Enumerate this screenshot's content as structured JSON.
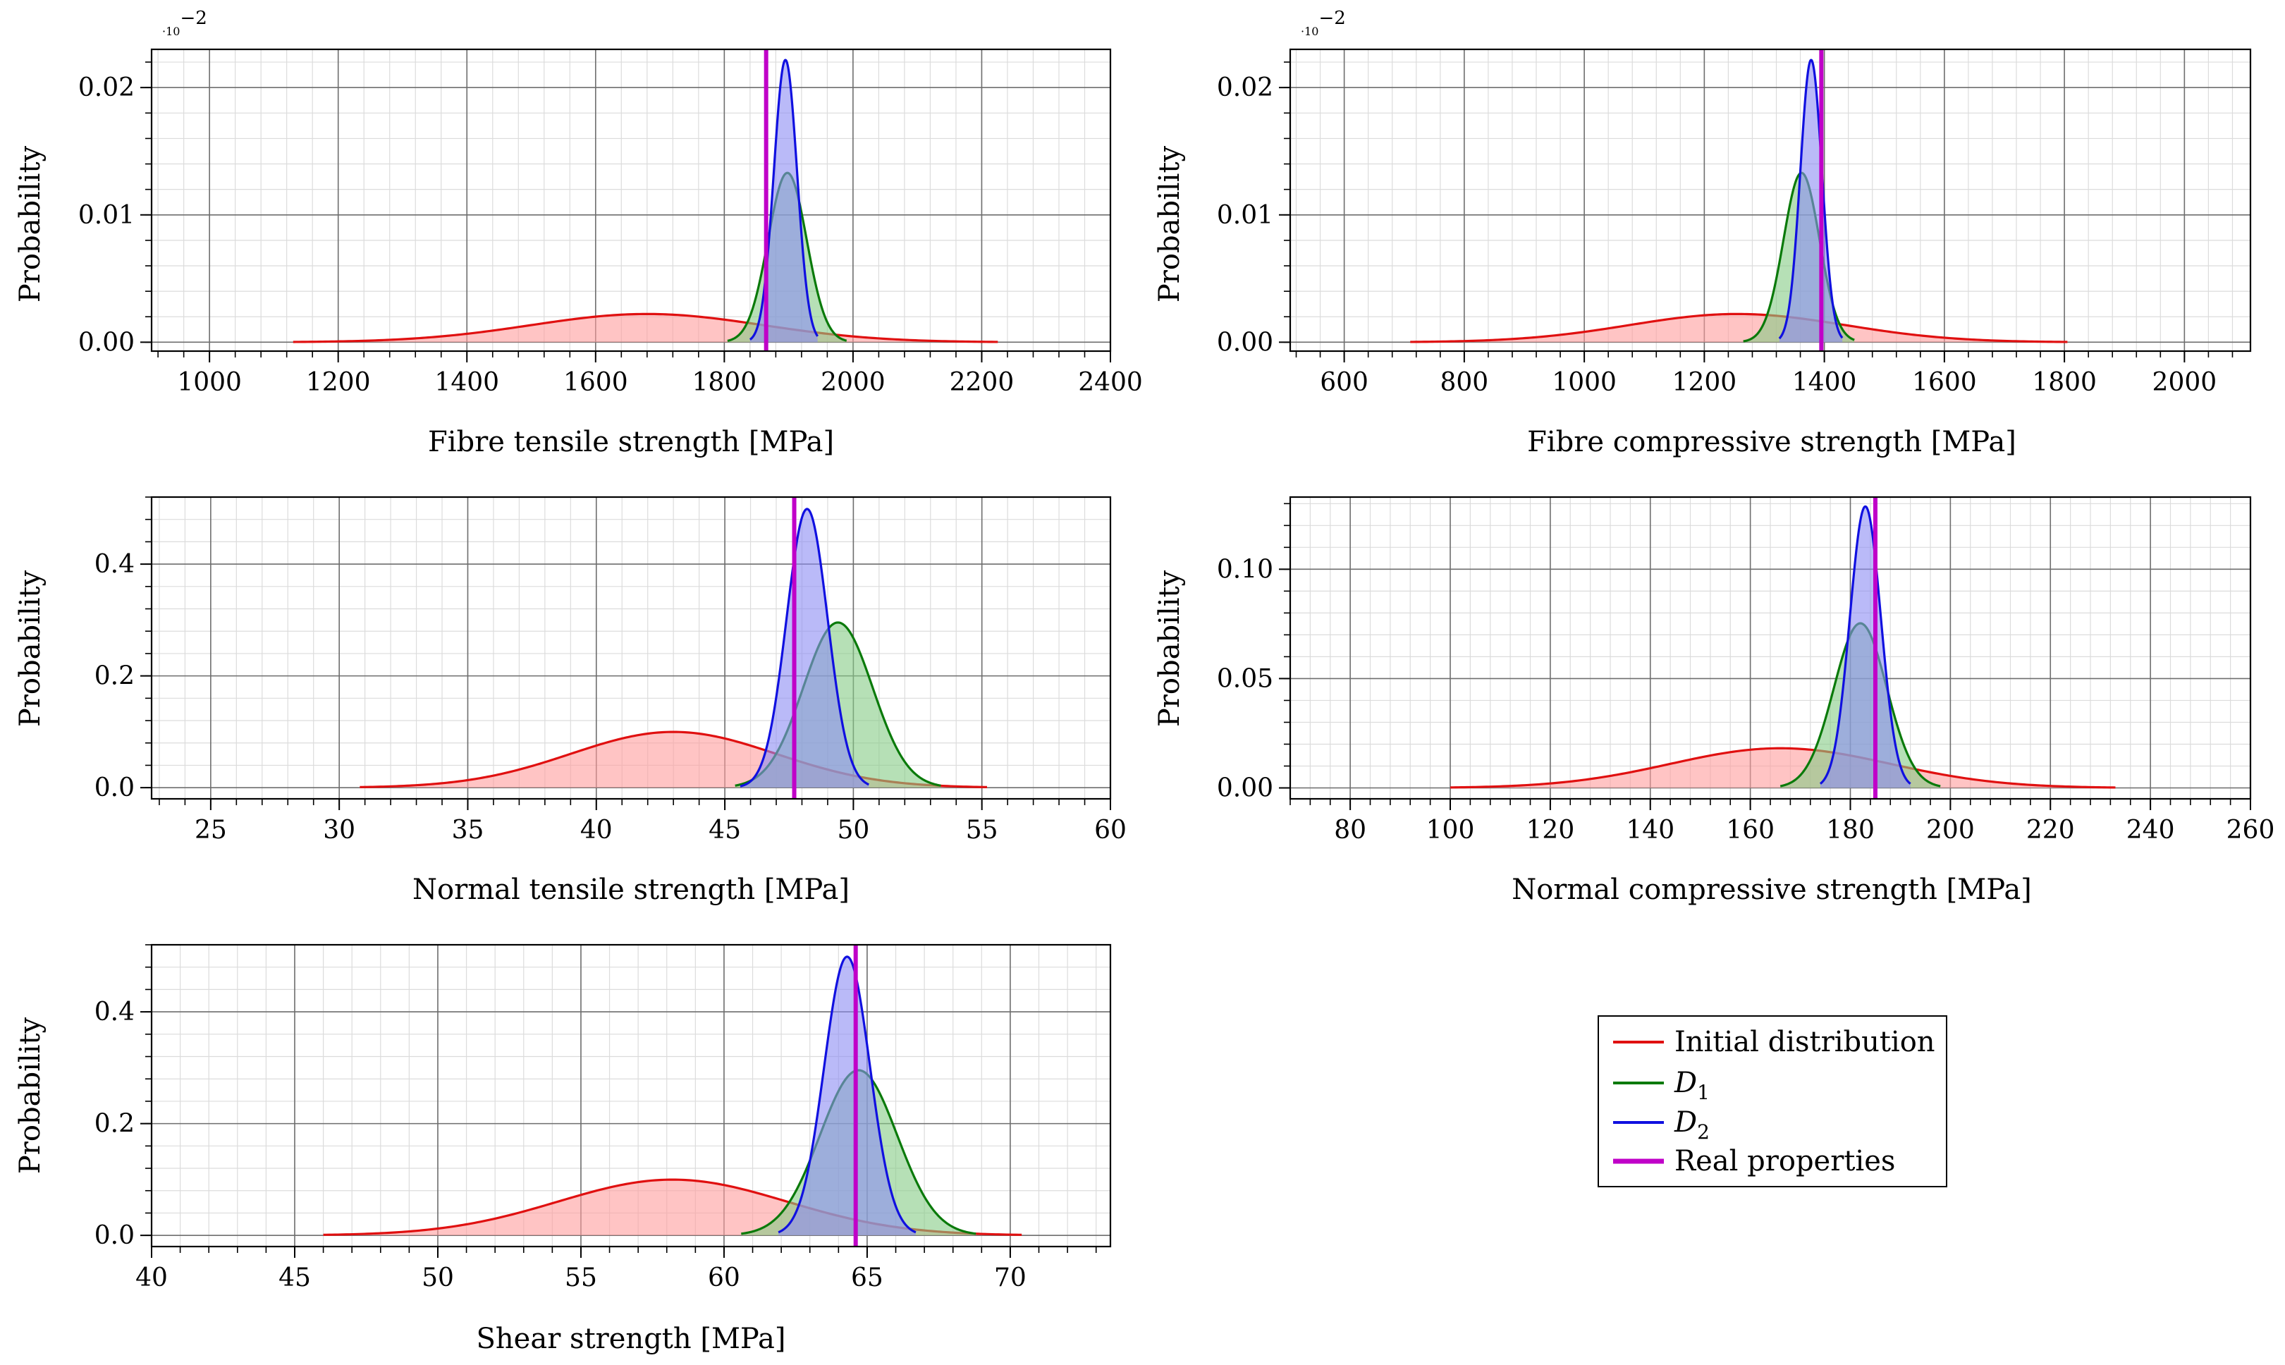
{
  "colors": {
    "initial": "#e01010",
    "initial_fill": "#ff9c9c",
    "d1": "#0a7a0a",
    "d1_fill": "#86cc86",
    "d2": "#1010e0",
    "d2_fill": "#8c8cf4",
    "real": "#c000c8"
  },
  "legend": {
    "items": [
      {
        "label": "Initial distribution",
        "color_key": "initial"
      },
      {
        "label": "D",
        "subscript": "1",
        "color_key": "d1"
      },
      {
        "label": "D",
        "subscript": "2",
        "color_key": "d2"
      },
      {
        "label": "Real properties",
        "color_key": "real"
      }
    ]
  },
  "chart_data": [
    {
      "type": "area",
      "id": "fibre-tensile",
      "xlabel": "Fibre tensile strength [MPa]",
      "ylabel": "Probability",
      "multiplier": {
        "base": "·10",
        "exp": "−2"
      },
      "xlim": [
        910,
        2400
      ],
      "ylim": [
        -0.0007,
        0.023
      ],
      "xticks": [
        1000,
        1200,
        1400,
        1600,
        1800,
        2000,
        2200,
        2400
      ],
      "xtick_labels": [
        "1000",
        "1200",
        "1400",
        "1600",
        "1800",
        "2000",
        "2200",
        "2400"
      ],
      "yticks": [
        0,
        0.01,
        0.02
      ],
      "ytick_labels": [
        "0.00",
        "0.01",
        "0.02"
      ],
      "grid_major": {
        "x": 200,
        "y": 0.01
      },
      "grid_minor": {
        "x": 40,
        "y": 0.002
      },
      "series": [
        {
          "name": "Initial distribution",
          "color_key": "initial",
          "mean": 1680,
          "sd": 180,
          "range": [
            1130,
            2225
          ]
        },
        {
          "name": "D1",
          "color_key": "d1",
          "mean": 1898,
          "sd": 30,
          "range": [
            1805,
            1990
          ]
        },
        {
          "name": "D2",
          "color_key": "d2",
          "mean": 1895,
          "sd": 18,
          "range": [
            1840,
            1945
          ]
        }
      ],
      "real_value": 1865
    },
    {
      "type": "area",
      "id": "fibre-compressive",
      "xlabel": "Fibre compressive strength [MPa]",
      "ylabel": "Probability",
      "multiplier": {
        "base": "·10",
        "exp": "−2"
      },
      "xlim": [
        510,
        2110
      ],
      "ylim": [
        -0.0007,
        0.023
      ],
      "xticks": [
        600,
        800,
        1000,
        1200,
        1400,
        1600,
        1800,
        2000
      ],
      "xtick_labels": [
        "600",
        "800",
        "1000",
        "1200",
        "1400",
        "1600",
        "1800",
        "2000"
      ],
      "yticks": [
        0,
        0.01,
        0.02
      ],
      "ytick_labels": [
        "0.00",
        "0.01",
        "0.02"
      ],
      "grid_major": {
        "x": 200,
        "y": 0.01
      },
      "grid_minor": {
        "x": 40,
        "y": 0.002
      },
      "series": [
        {
          "name": "Initial distribution",
          "color_key": "initial",
          "mean": 1255,
          "sd": 180,
          "range": [
            710,
            1805
          ]
        },
        {
          "name": "D1",
          "color_key": "d1",
          "mean": 1362,
          "sd": 30,
          "range": [
            1265,
            1450
          ]
        },
        {
          "name": "D2",
          "color_key": "d2",
          "mean": 1378,
          "sd": 18,
          "range": [
            1325,
            1430
          ]
        }
      ],
      "real_value": 1395
    },
    {
      "type": "area",
      "id": "normal-tensile",
      "xlabel": "Normal tensile strength [MPa]",
      "ylabel": "Probability",
      "multiplier": null,
      "xlim": [
        22.7,
        60
      ],
      "ylim": [
        -0.02,
        0.52
      ],
      "xticks": [
        25,
        30,
        35,
        40,
        45,
        50,
        55,
        60
      ],
      "xtick_labels": [
        "25",
        "30",
        "35",
        "40",
        "45",
        "50",
        "55",
        "60"
      ],
      "yticks": [
        0,
        0.2,
        0.4
      ],
      "ytick_labels": [
        "0.0",
        "0.2",
        "0.4"
      ],
      "grid_major": {
        "x": 5,
        "y": 0.2
      },
      "grid_minor": {
        "x": 1,
        "y": 0.04
      },
      "series": [
        {
          "name": "Initial distribution",
          "color_key": "initial",
          "mean": 43,
          "sd": 4,
          "range": [
            30.8,
            55.2
          ]
        },
        {
          "name": "D1",
          "color_key": "d1",
          "mean": 49.4,
          "sd": 1.35,
          "range": [
            45.4,
            53.4
          ]
        },
        {
          "name": "D2",
          "color_key": "d2",
          "mean": 48.2,
          "sd": 0.8,
          "range": [
            45.6,
            50.6
          ]
        }
      ],
      "real_value": 47.7
    },
    {
      "type": "area",
      "id": "normal-compressive",
      "xlabel": "Normal compressive strength [MPa]",
      "ylabel": "Probability",
      "multiplier": null,
      "xlim": [
        68,
        260
      ],
      "ylim": [
        -0.005,
        0.133
      ],
      "xticks": [
        80,
        100,
        120,
        140,
        160,
        180,
        200,
        220,
        240,
        260
      ],
      "xtick_labels": [
        "80",
        "100",
        "120",
        "140",
        "160",
        "180",
        "200",
        "220",
        "240",
        "260"
      ],
      "yticks": [
        0,
        0.05,
        0.1
      ],
      "ytick_labels": [
        "0.00",
        "0.05",
        "0.10"
      ],
      "grid_major": {
        "x": 20,
        "y": 0.05
      },
      "grid_minor": {
        "x": 4,
        "y": 0.01
      },
      "series": [
        {
          "name": "Initial distribution",
          "color_key": "initial",
          "mean": 166,
          "sd": 22,
          "range": [
            100,
            233
          ]
        },
        {
          "name": "D1",
          "color_key": "d1",
          "mean": 182,
          "sd": 5.3,
          "range": [
            166,
            198
          ]
        },
        {
          "name": "D2",
          "color_key": "d2",
          "mean": 183,
          "sd": 3.1,
          "range": [
            174,
            192
          ]
        }
      ],
      "real_value": 185
    },
    {
      "type": "area",
      "id": "shear",
      "xlabel": "Shear strength [MPa]",
      "ylabel": "Probability",
      "multiplier": null,
      "xlim": [
        40,
        73.5
      ],
      "ylim": [
        -0.02,
        0.52
      ],
      "xticks": [
        40,
        45,
        50,
        55,
        60,
        65,
        70
      ],
      "xtick_labels": [
        "40",
        "45",
        "50",
        "55",
        "60",
        "65",
        "70"
      ],
      "yticks": [
        0,
        0.2,
        0.4
      ],
      "ytick_labels": [
        "0.0",
        "0.2",
        "0.4"
      ],
      "grid_major": {
        "x": 5,
        "y": 0.2
      },
      "grid_minor": {
        "x": 1,
        "y": 0.04
      },
      "series": [
        {
          "name": "Initial distribution",
          "color_key": "initial",
          "mean": 58.2,
          "sd": 4,
          "range": [
            46,
            70.4
          ]
        },
        {
          "name": "D1",
          "color_key": "d1",
          "mean": 64.7,
          "sd": 1.35,
          "range": [
            60.6,
            68.8
          ]
        },
        {
          "name": "D2",
          "color_key": "d2",
          "mean": 64.3,
          "sd": 0.8,
          "range": [
            61.9,
            66.7
          ]
        }
      ],
      "real_value": 64.6
    }
  ]
}
